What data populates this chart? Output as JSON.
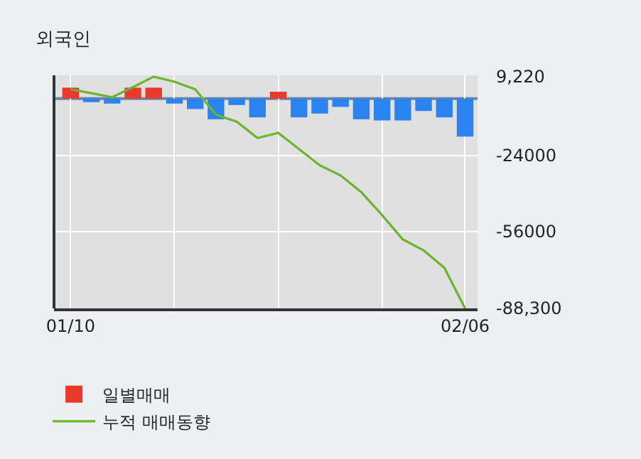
{
  "chart_data": {
    "type": "bar",
    "title": "외국인",
    "categories": [
      "01/10",
      null,
      null,
      null,
      null,
      null,
      null,
      null,
      null,
      null,
      null,
      null,
      null,
      null,
      null,
      null,
      null,
      null,
      null,
      "02/06"
    ],
    "series": [
      {
        "name": "일별매매",
        "colors": [
          "#e8392a",
          "#2a83ee",
          "#2a83ee",
          "#e8392a",
          "#e8392a",
          "#2a83ee",
          "#2a83ee",
          "#2a83ee",
          "#2a83ee",
          "#2a83ee",
          "#e8392a",
          "#2a83ee",
          "#2a83ee",
          "#2a83ee",
          "#2a83ee",
          "#2a83ee",
          "#2a83ee",
          "#2a83ee",
          "#2a83ee",
          "#2a83ee"
        ],
        "values": [
          4600,
          -1500,
          -2100,
          4600,
          4600,
          -2100,
          -4400,
          -8700,
          -2700,
          -7900,
          2900,
          -7900,
          -6300,
          -3500,
          -8700,
          -9200,
          -9200,
          -5200,
          -7900,
          -16000
        ]
      },
      {
        "name": "누적 매매동향",
        "type": "line",
        "color": "#6cb42e",
        "values": [
          3900,
          2300,
          600,
          4800,
          9220,
          7100,
          3900,
          -6800,
          -9700,
          -16600,
          -14400,
          -21200,
          -28100,
          -32300,
          -39400,
          -49000,
          -59300,
          -63900,
          -71200,
          -88300
        ]
      }
    ],
    "ylim": [
      -88300,
      9800
    ],
    "yticks": [
      {
        "value": 9220,
        "label": "9,220"
      },
      -24000,
      -56000,
      {
        "value": -88300,
        "label": "-88,300"
      }
    ],
    "ref_lines": [
      {
        "axis": "y",
        "value": 0,
        "color": "#6a85a8"
      }
    ],
    "grid": true,
    "legend": "bottom",
    "marker": "none"
  }
}
